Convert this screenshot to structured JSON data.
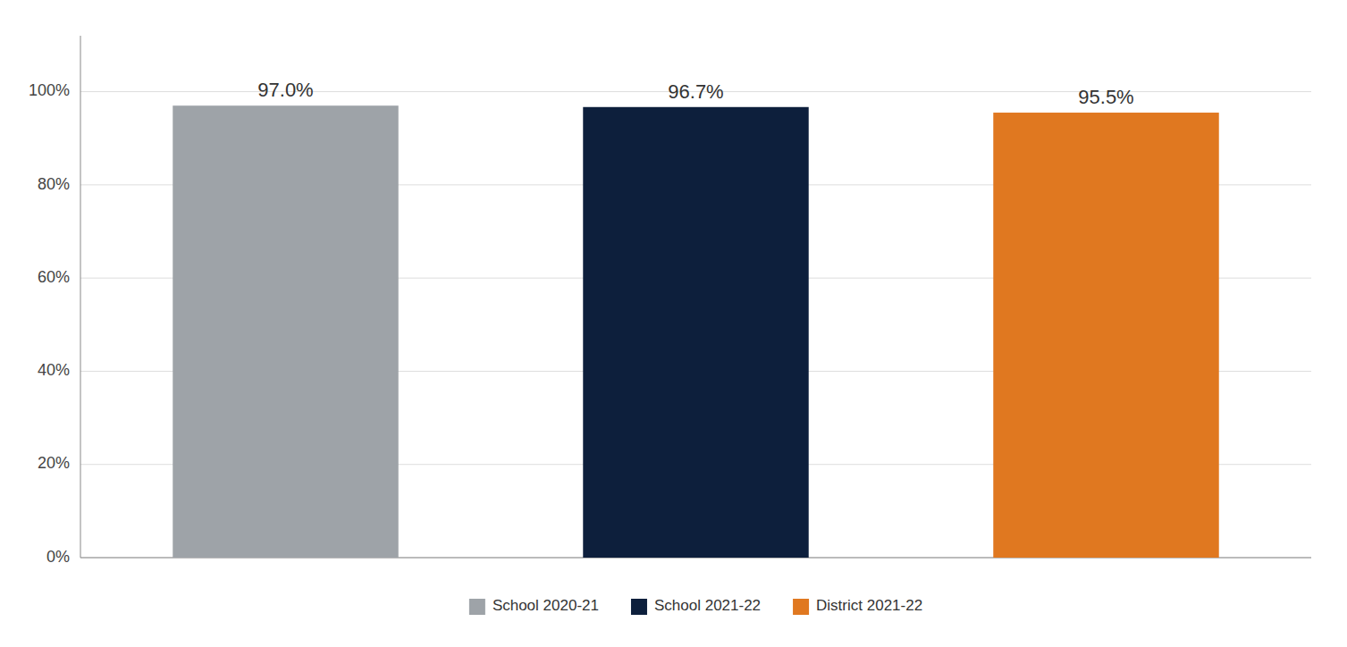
{
  "chart_data": {
    "type": "bar",
    "categories": [
      "School 2020-21",
      "School 2021-22",
      "District 2021-22"
    ],
    "values": [
      0.97,
      0.967,
      0.955
    ],
    "value_labels": [
      "97.0%",
      "96.7%",
      "95.5%"
    ],
    "colors": [
      "#9ea3a8",
      "#0d1f3c",
      "#e07820"
    ],
    "ylim": [
      0,
      1.12
    ],
    "yticks": [
      {
        "value": 0.0,
        "label": "0%"
      },
      {
        "value": 0.2,
        "label": "20%"
      },
      {
        "value": 0.4,
        "label": "40%"
      },
      {
        "value": 0.6,
        "label": "60%"
      },
      {
        "value": 0.8,
        "label": "80%"
      },
      {
        "value": 1.0,
        "label": "100%"
      }
    ],
    "grid": true,
    "data_labels": true,
    "tick_labels": "y",
    "legend": "bottom"
  }
}
